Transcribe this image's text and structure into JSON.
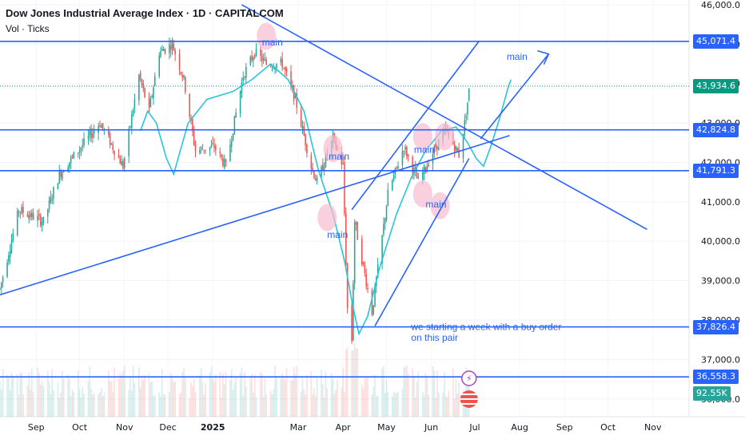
{
  "header": {
    "title": "Dow Jones Industrial Average Index · 1D · CAPITALCOM",
    "subtitle": "Vol · Ticks"
  },
  "colors": {
    "up": "#26a69a",
    "down": "#ef5350",
    "drawing": "#2962ff",
    "curve": "#26c6da",
    "highlight": "#f8bbd0",
    "last_price": "#089981",
    "volume_tag": "#26a69a"
  },
  "chart_data": {
    "type": "candlestick",
    "y_axis": {
      "ticks": [
        46000,
        45000,
        44000,
        43000,
        42000,
        41000,
        40000,
        39000,
        38000,
        37000,
        36000
      ],
      "tick_labels": [
        "46,000.0",
        "45,000.0",
        "44,000.0",
        "43,000.0",
        "42,000.0",
        "41,000.0",
        "40,000.0",
        "39,000.0",
        "38,000.0",
        "37,000.0",
        "36,000.0"
      ],
      "range": [
        35550,
        46120
      ]
    },
    "x_axis": {
      "labels": [
        "Sep",
        "Oct",
        "Nov",
        "Dec",
        "2025",
        "Mar",
        "Apr",
        "May",
        "Jun",
        "Jul",
        "Aug",
        "Sep",
        "Oct",
        "Nov"
      ],
      "start_date": "2024-08-07",
      "end_date": "2024-11-26"
    },
    "price_path": [
      [
        "2024-08-07",
        38800
      ],
      [
        "2024-08-20",
        40800
      ],
      [
        "2024-09-06",
        40500
      ],
      [
        "2024-09-17",
        41700
      ],
      [
        "2024-09-30",
        42300
      ],
      [
        "2024-10-15",
        43000
      ],
      [
        "2024-10-31",
        41900
      ],
      [
        "2024-11-11",
        44200
      ],
      [
        "2024-11-18",
        43300
      ],
      [
        "2024-11-25",
        44800
      ],
      [
        "2024-12-04",
        45000
      ],
      [
        "2024-12-12",
        44100
      ],
      [
        "2024-12-20",
        42300
      ],
      [
        "2025-01-02",
        42400
      ],
      [
        "2025-01-10",
        41900
      ],
      [
        "2025-01-22",
        44200
      ],
      [
        "2025-01-30",
        44800
      ],
      [
        "2025-02-07",
        44500
      ],
      [
        "2025-02-18",
        44500
      ],
      [
        "2025-02-27",
        43600
      ],
      [
        "2025-03-10",
        41900
      ],
      [
        "2025-03-14",
        41500
      ],
      [
        "2025-03-25",
        42600
      ],
      [
        "2025-04-01",
        41900
      ],
      [
        "2025-04-04",
        38300
      ],
      [
        "2025-04-07",
        37500
      ],
      [
        "2025-04-09",
        40500
      ],
      [
        "2025-04-21",
        38200
      ],
      [
        "2025-05-02",
        41200
      ],
      [
        "2025-05-13",
        42400
      ],
      [
        "2025-05-23",
        41500
      ],
      [
        "2025-06-04",
        42400
      ],
      [
        "2025-06-11",
        42800
      ],
      [
        "2025-06-20",
        42200
      ],
      [
        "2025-06-24",
        43000
      ],
      [
        "2025-06-27",
        43800
      ]
    ],
    "volume": {
      "last_label": "92.55K"
    },
    "horizontal_levels": [
      {
        "value": 45071.4,
        "label": "45,071.4"
      },
      {
        "value": 42824.8,
        "label": "42,824.8"
      },
      {
        "value": 41791.3,
        "label": "41,791.3"
      },
      {
        "value": 37826.4,
        "label": "37,826.4"
      },
      {
        "value": 36558.3,
        "label": "36,558.3"
      }
    ],
    "last_price": {
      "value": 43934.6,
      "label": "43,934.6"
    },
    "trendlines": [
      {
        "from": [
          "2024-08-07",
          38640
        ],
        "to": [
          "2025-07-25",
          42680
        ]
      },
      {
        "from": [
          "2025-01-21",
          46000
        ],
        "to": [
          "2025-10-28",
          40300
        ]
      },
      {
        "from": [
          "2025-04-23",
          37850
        ],
        "to": [
          "2025-06-27",
          42100
        ]
      },
      {
        "from": [
          "2025-04-07",
          40800
        ],
        "to": [
          "2025-07-04",
          45080
        ]
      },
      {
        "from": [
          "2025-07-05",
          42600
        ],
        "to": [
          "2025-08-21",
          44750
        ]
      }
    ],
    "annotations": [
      {
        "text": "main",
        "at": [
          "2025-02-04",
          44970
        ]
      },
      {
        "text": "main",
        "at": [
          "2025-03-22",
          42070
        ]
      },
      {
        "text": "main",
        "at": [
          "2025-03-21",
          40090
        ]
      },
      {
        "text": "main",
        "at": [
          "2025-05-20",
          42240
        ]
      },
      {
        "text": "main",
        "at": [
          "2025-05-28",
          40860
        ]
      },
      {
        "text": "main",
        "at": [
          "2025-07-23",
          44600
        ]
      },
      {
        "text": "we starting a week with a buy order",
        "at": [
          "2025-05-18",
          37750
        ]
      },
      {
        "text": "on this pair",
        "at": [
          "2025-05-18",
          37470
        ]
      }
    ]
  }
}
